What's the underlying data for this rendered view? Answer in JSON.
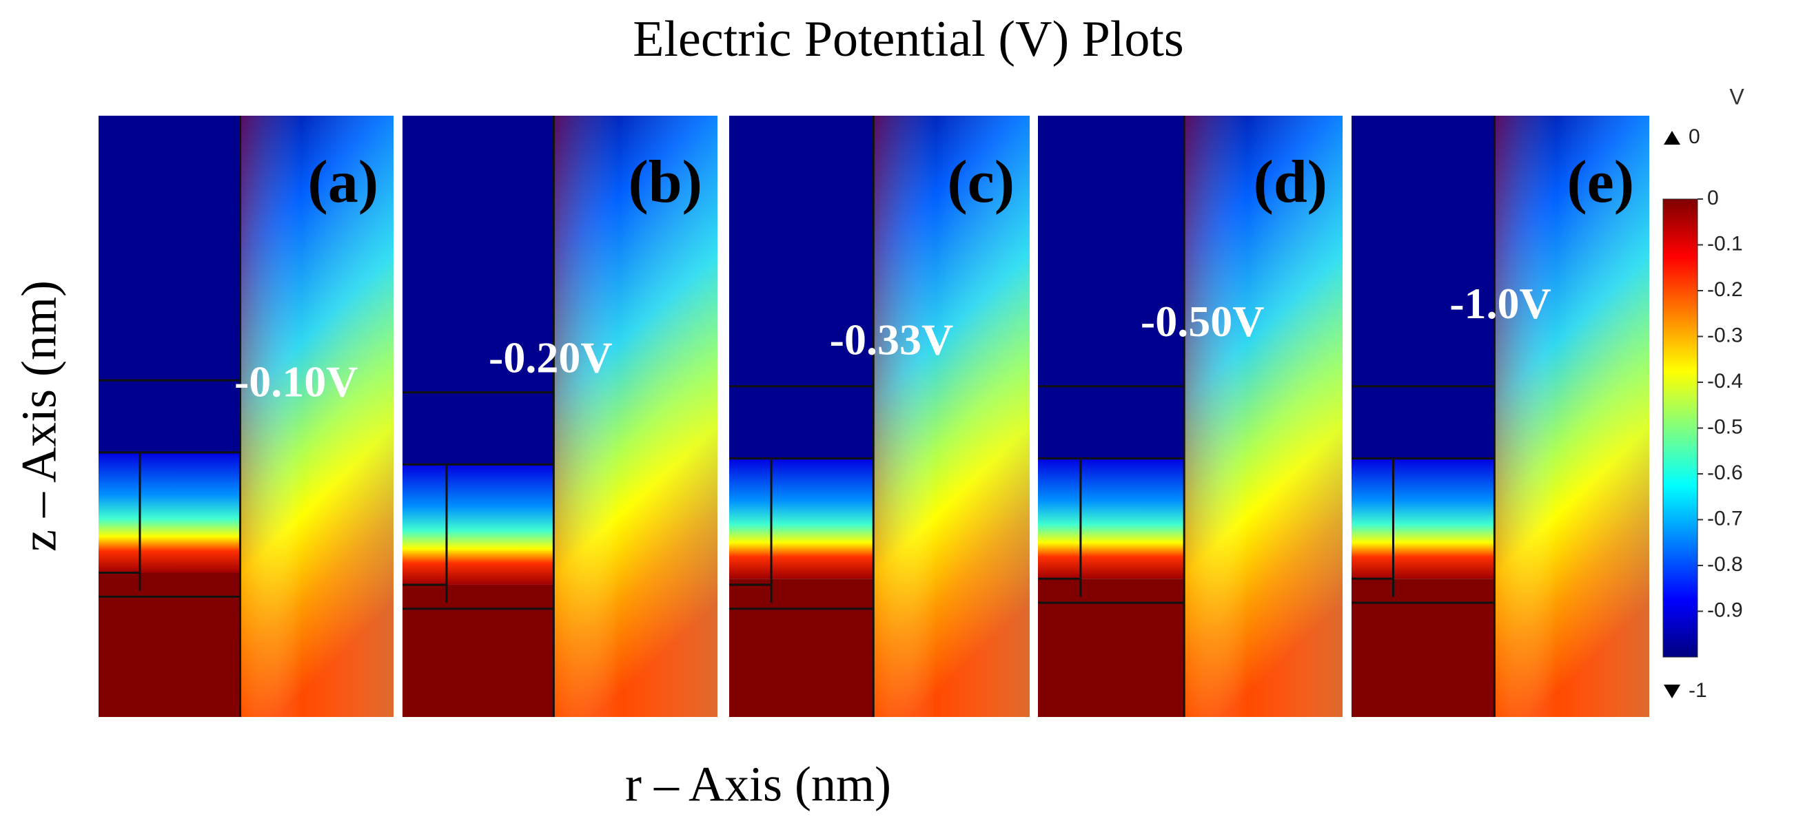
{
  "chart_data": {
    "type": "heatmap",
    "title": "Electric Potential (V) Plots",
    "xlabel": "r – Axis (nm)",
    "ylabel": "z – Axis (nm)",
    "panels": [
      {
        "label": "(a)",
        "annotation": "-0.10V"
      },
      {
        "label": "(b)",
        "annotation": "-0.20V"
      },
      {
        "label": "(c)",
        "annotation": "-0.33V"
      },
      {
        "label": "(d)",
        "annotation": "-0.50V"
      },
      {
        "label": "(e)",
        "annotation": "-1.0V"
      }
    ],
    "colorbar": {
      "unit": "V",
      "clim": [
        -1,
        0
      ],
      "ticks": [
        0,
        -0.1,
        -0.2,
        -0.3,
        -0.4,
        -0.5,
        -0.6,
        -0.7,
        -0.8,
        -0.9
      ],
      "colormap": "jet"
    }
  }
}
